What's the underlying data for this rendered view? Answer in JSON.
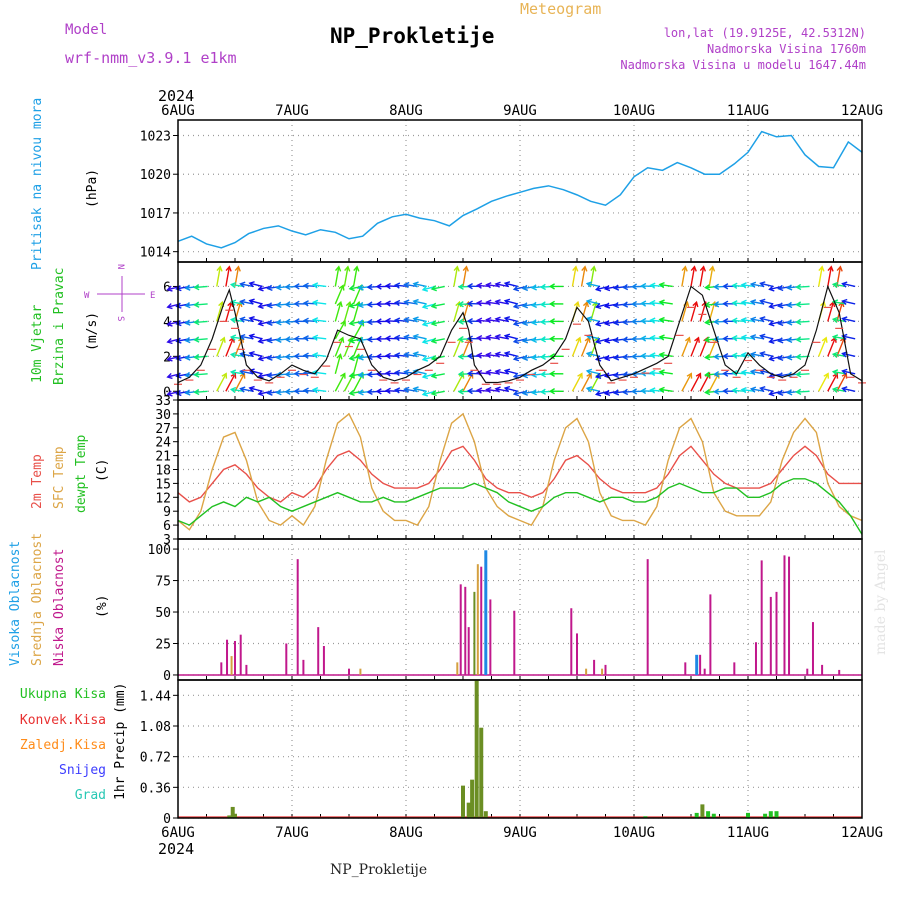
{
  "header": {
    "model_label": "Model",
    "model_name": "wrf-nmm_v3.9.1  e1km",
    "product": "Meteogram",
    "station": "NP_Prokletije",
    "coords": "lon,lat (19.9125E, 42.5312N)",
    "elevation": "Nadmorska Visina 1760m",
    "model_elevation": "Nadmorska Visina u modelu 1647.44m",
    "footer_station": "NP_Prokletije",
    "credit": "made by Angel"
  },
  "colors": {
    "pressure": "#1ea0e6",
    "temp2m": "#e8504a",
    "sfc_temp": "#dca546",
    "dewpt": "#22c022",
    "cloud_high": "#1e88e5",
    "cloud_mid": "#d4a040",
    "cloud_low": "#c0188c",
    "precip_total": "#6b8e23",
    "precip_conv": "#e83030",
    "precip_frz": "#ff8c1a",
    "snow": "#3c3cff",
    "graupel": "#28c8b4",
    "label_purple": "#b040c8"
  },
  "chart_data": [
    {
      "type": "line",
      "panel": "pressure",
      "ylabel_main": "Pritisak na nivou mora",
      "unit": "(hPa)",
      "yticks": [
        1014,
        1017,
        1020,
        1023
      ],
      "ylim": [
        1013.2,
        1024.2
      ],
      "x_ticks": [
        "6AUG",
        "7AUG",
        "8AUG",
        "9AUG",
        "10AUG",
        "11AUG",
        "12AUG"
      ],
      "x_year": "2024",
      "x_days": [
        0,
        6
      ],
      "grid": true,
      "series": [
        {
          "x": [
            0,
            0.12,
            0.25,
            0.38,
            0.5,
            0.62,
            0.75,
            0.88,
            1.0,
            1.12,
            1.25,
            1.38,
            1.5,
            1.62,
            1.75,
            1.88,
            2.0,
            2.12,
            2.25,
            2.38,
            2.5,
            2.62,
            2.75,
            2.88,
            3.0,
            3.12,
            3.25,
            3.38,
            3.5,
            3.62,
            3.75,
            3.88,
            4.0,
            4.12,
            4.25,
            4.38,
            4.5,
            4.62,
            4.75,
            4.88,
            5.0,
            5.12,
            5.25,
            5.38,
            5.5,
            5.62,
            5.75,
            5.88,
            6.0
          ],
          "y": [
            1014.8,
            1015.2,
            1014.6,
            1014.3,
            1014.7,
            1015.4,
            1015.8,
            1016.0,
            1015.6,
            1015.3,
            1015.7,
            1015.5,
            1015.0,
            1015.2,
            1016.2,
            1016.7,
            1016.9,
            1016.6,
            1016.4,
            1016.0,
            1016.8,
            1017.3,
            1017.9,
            1018.3,
            1018.6,
            1018.9,
            1019.1,
            1018.8,
            1018.4,
            1017.9,
            1017.6,
            1018.4,
            1019.8,
            1020.5,
            1020.3,
            1020.9,
            1020.5,
            1020.0,
            1020.0,
            1020.8,
            1021.7,
            1023.3,
            1022.9,
            1023.0,
            1021.5,
            1020.6,
            1020.5,
            1022.5,
            1021.7
          ]
        }
      ]
    },
    {
      "type": "line",
      "panel": "wind",
      "ylabel_main": "10m Vjetar",
      "ylabel_sub": "Brzina i Pravac",
      "unit": "(m/s)",
      "compass": {
        "n": "N",
        "s": "S",
        "e": "E",
        "w": "W"
      },
      "yticks": [
        0,
        2,
        4,
        6
      ],
      "ylim": [
        -0.5,
        7.4
      ],
      "grid": true,
      "series": [
        {
          "name": "",
          "x": [
            0,
            0.1,
            0.2,
            0.3,
            0.4,
            0.45,
            0.5,
            0.55,
            0.6,
            0.7,
            0.8,
            0.9,
            1.0,
            1.1,
            1.2,
            1.3,
            1.4,
            1.5,
            1.6,
            1.7,
            1.8,
            1.9,
            2.0,
            2.1,
            2.2,
            2.3,
            2.4,
            2.5,
            2.55,
            2.6,
            2.7,
            2.8,
            2.9,
            3.0,
            3.1,
            3.2,
            3.3,
            3.4,
            3.5,
            3.6,
            3.7,
            3.8,
            3.9,
            4.0,
            4.1,
            4.2,
            4.3,
            4.4,
            4.5,
            4.6,
            4.7,
            4.8,
            4.9,
            5.0,
            5.1,
            5.2,
            5.3,
            5.4,
            5.5,
            5.6,
            5.7,
            5.8,
            5.9,
            6.0
          ],
          "y": [
            0.5,
            0.8,
            1.5,
            3.0,
            5.0,
            5.8,
            4.5,
            3.0,
            1.5,
            0.8,
            0.6,
            1.0,
            1.5,
            1.2,
            1.0,
            1.8,
            3.5,
            3.2,
            3.0,
            1.5,
            0.8,
            0.6,
            0.8,
            1.2,
            1.5,
            2.0,
            3.5,
            4.5,
            3.5,
            1.5,
            0.5,
            0.5,
            0.6,
            0.8,
            1.2,
            1.5,
            2.0,
            3.0,
            4.8,
            4.0,
            1.5,
            0.6,
            0.8,
            1.0,
            1.3,
            1.6,
            2.0,
            4.0,
            6.0,
            5.5,
            3.5,
            1.5,
            1.0,
            2.2,
            1.5,
            1.0,
            0.8,
            1.0,
            1.5,
            3.5,
            6.0,
            4.5,
            1.0,
            0.6
          ]
        }
      ]
    },
    {
      "type": "line",
      "panel": "temperature",
      "ylabel_a": "2m Temp",
      "ylabel_b": "SFC Temp",
      "ylabel_c": "dewpt Temp",
      "unit": "(C)",
      "yticks": [
        3,
        6,
        9,
        12,
        15,
        18,
        21,
        24,
        27,
        30,
        33
      ],
      "ylim": [
        3,
        33
      ],
      "grid": true,
      "series": [
        {
          "name": "2m Temp",
          "x": [
            0,
            0.1,
            0.2,
            0.3,
            0.4,
            0.5,
            0.6,
            0.7,
            0.8,
            0.9,
            1.0,
            1.1,
            1.2,
            1.3,
            1.4,
            1.5,
            1.6,
            1.7,
            1.8,
            1.9,
            2.0,
            2.1,
            2.2,
            2.3,
            2.4,
            2.5,
            2.6,
            2.7,
            2.8,
            2.9,
            3.0,
            3.1,
            3.2,
            3.3,
            3.4,
            3.5,
            3.6,
            3.7,
            3.8,
            3.9,
            4.0,
            4.1,
            4.2,
            4.3,
            4.4,
            4.5,
            4.6,
            4.7,
            4.8,
            4.9,
            5.0,
            5.1,
            5.2,
            5.3,
            5.4,
            5.5,
            5.6,
            5.7,
            5.8,
            5.9,
            6.0
          ],
          "y": [
            13,
            11,
            12,
            15,
            18,
            19,
            17,
            14,
            12,
            11,
            13,
            12,
            14,
            18,
            21,
            22,
            20,
            17,
            15,
            14,
            14,
            14,
            15,
            18,
            22,
            23,
            20,
            16,
            14,
            13,
            13,
            12,
            13,
            16,
            20,
            21,
            19,
            16,
            14,
            13,
            13,
            13,
            14,
            17,
            21,
            23,
            20,
            17,
            15,
            14,
            14,
            14,
            15,
            18,
            21,
            23,
            21,
            17,
            15,
            15,
            15
          ]
        },
        {
          "name": "SFC Temp",
          "x": [
            0,
            0.1,
            0.2,
            0.3,
            0.4,
            0.5,
            0.6,
            0.7,
            0.8,
            0.9,
            1.0,
            1.1,
            1.2,
            1.3,
            1.4,
            1.5,
            1.6,
            1.7,
            1.8,
            1.9,
            2.0,
            2.1,
            2.2,
            2.3,
            2.4,
            2.5,
            2.6,
            2.7,
            2.8,
            2.9,
            3.0,
            3.1,
            3.2,
            3.3,
            3.4,
            3.5,
            3.6,
            3.7,
            3.8,
            3.9,
            4.0,
            4.1,
            4.2,
            4.3,
            4.4,
            4.5,
            4.6,
            4.7,
            4.8,
            4.9,
            5.0,
            5.1,
            5.2,
            5.3,
            5.4,
            5.5,
            5.6,
            5.7,
            5.8,
            5.9,
            6.0
          ],
          "y": [
            7,
            5,
            9,
            18,
            25,
            26,
            20,
            11,
            7,
            6,
            8,
            6,
            10,
            20,
            28,
            30,
            25,
            14,
            9,
            7,
            7,
            6,
            10,
            20,
            28,
            30,
            24,
            14,
            10,
            8,
            7,
            6,
            10,
            20,
            27,
            29,
            24,
            13,
            8,
            7,
            7,
            6,
            10,
            20,
            27,
            29,
            24,
            13,
            9,
            8,
            8,
            8,
            11,
            20,
            26,
            29,
            26,
            15,
            10,
            8,
            7
          ]
        },
        {
          "name": "dewpt Temp",
          "x": [
            0,
            0.1,
            0.2,
            0.3,
            0.4,
            0.5,
            0.6,
            0.7,
            0.8,
            0.9,
            1.0,
            1.1,
            1.2,
            1.3,
            1.4,
            1.5,
            1.6,
            1.7,
            1.8,
            1.9,
            2.0,
            2.1,
            2.2,
            2.3,
            2.4,
            2.5,
            2.6,
            2.7,
            2.8,
            2.9,
            3.0,
            3.1,
            3.2,
            3.3,
            3.4,
            3.5,
            3.6,
            3.7,
            3.8,
            3.9,
            4.0,
            4.1,
            4.2,
            4.3,
            4.4,
            4.5,
            4.6,
            4.7,
            4.8,
            4.9,
            5.0,
            5.1,
            5.2,
            5.3,
            5.4,
            5.5,
            5.6,
            5.7,
            5.8,
            5.9,
            6.0
          ],
          "y": [
            7,
            6,
            8,
            10,
            11,
            10,
            12,
            11,
            12,
            10,
            9,
            10,
            11,
            12,
            13,
            12,
            11,
            11,
            12,
            11,
            11,
            12,
            13,
            14,
            14,
            14,
            15,
            14,
            13,
            11,
            10,
            9,
            10,
            12,
            13,
            13,
            12,
            11,
            12,
            12,
            11,
            11,
            12,
            14,
            15,
            14,
            13,
            13,
            14,
            14,
            12,
            12,
            13,
            15,
            16,
            16,
            15,
            13,
            11,
            8,
            4
          ]
        }
      ]
    },
    {
      "type": "bar",
      "panel": "clouds",
      "ylabel_a": "Visoka Oblacnost",
      "ylabel_b": "Srednja Oblacnost",
      "ylabel_c": "Niska Oblacnost",
      "unit": "(%)",
      "yticks": [
        0,
        25,
        50,
        75,
        100
      ],
      "ylim": [
        -4,
        108
      ],
      "grid": true,
      "bars": [
        {
          "t": 0.38,
          "v": 10,
          "s": "low"
        },
        {
          "t": 0.43,
          "v": 28,
          "s": "low"
        },
        {
          "t": 0.47,
          "v": 15,
          "s": "mid"
        },
        {
          "t": 0.5,
          "v": 27,
          "s": "low"
        },
        {
          "t": 0.55,
          "v": 32,
          "s": "low"
        },
        {
          "t": 0.6,
          "v": 8,
          "s": "low"
        },
        {
          "t": 0.95,
          "v": 25,
          "s": "low"
        },
        {
          "t": 1.05,
          "v": 92,
          "s": "low"
        },
        {
          "t": 1.1,
          "v": 12,
          "s": "low"
        },
        {
          "t": 1.23,
          "v": 38,
          "s": "low"
        },
        {
          "t": 1.28,
          "v": 23,
          "s": "low"
        },
        {
          "t": 1.5,
          "v": 5,
          "s": "low"
        },
        {
          "t": 1.6,
          "v": 5,
          "s": "mid"
        },
        {
          "t": 2.45,
          "v": 10,
          "s": "mid"
        },
        {
          "t": 2.48,
          "v": 72,
          "s": "low"
        },
        {
          "t": 2.52,
          "v": 70,
          "s": "low"
        },
        {
          "t": 2.55,
          "v": 38,
          "s": "low"
        },
        {
          "t": 2.6,
          "v": 66,
          "s": "total"
        },
        {
          "t": 2.63,
          "v": 88,
          "s": "mid"
        },
        {
          "t": 2.66,
          "v": 86,
          "s": "low"
        },
        {
          "t": 2.7,
          "v": 99,
          "s": "high"
        },
        {
          "t": 2.74,
          "v": 60,
          "s": "low"
        },
        {
          "t": 2.95,
          "v": 51,
          "s": "low"
        },
        {
          "t": 3.45,
          "v": 53,
          "s": "low"
        },
        {
          "t": 3.5,
          "v": 33,
          "s": "low"
        },
        {
          "t": 3.58,
          "v": 5,
          "s": "mid"
        },
        {
          "t": 3.65,
          "v": 12,
          "s": "low"
        },
        {
          "t": 3.72,
          "v": 5,
          "s": "mid"
        },
        {
          "t": 3.75,
          "v": 8,
          "s": "low"
        },
        {
          "t": 4.12,
          "v": 92,
          "s": "low"
        },
        {
          "t": 4.45,
          "v": 10,
          "s": "low"
        },
        {
          "t": 4.55,
          "v": 16,
          "s": "high"
        },
        {
          "t": 4.58,
          "v": 16,
          "s": "low"
        },
        {
          "t": 4.62,
          "v": 5,
          "s": "low"
        },
        {
          "t": 4.67,
          "v": 64,
          "s": "low"
        },
        {
          "t": 4.88,
          "v": 10,
          "s": "low"
        },
        {
          "t": 5.07,
          "v": 26,
          "s": "low"
        },
        {
          "t": 5.12,
          "v": 91,
          "s": "low"
        },
        {
          "t": 5.2,
          "v": 62,
          "s": "low"
        },
        {
          "t": 5.25,
          "v": 66,
          "s": "low"
        },
        {
          "t": 5.32,
          "v": 95,
          "s": "low"
        },
        {
          "t": 5.36,
          "v": 94,
          "s": "low"
        },
        {
          "t": 5.52,
          "v": 5,
          "s": "low"
        },
        {
          "t": 5.57,
          "v": 42,
          "s": "low"
        },
        {
          "t": 5.65,
          "v": 8,
          "s": "low"
        },
        {
          "t": 5.8,
          "v": 4,
          "s": "low"
        }
      ]
    },
    {
      "type": "bar",
      "panel": "precip",
      "ylabel_main": "1hr Precip (mm)",
      "legend": [
        "Ukupna Kisa",
        "Konvek.Kisa",
        "Zaledj.Kisa",
        "Snijeg",
        "Grad"
      ],
      "yticks": [
        0,
        0.36,
        0.72,
        1.08,
        1.44
      ],
      "ylim": [
        0,
        1.62
      ],
      "grid": true,
      "bars": [
        {
          "t": 0.45,
          "v": 0.03,
          "s": "total"
        },
        {
          "t": 0.48,
          "v": 0.13,
          "s": "total"
        },
        {
          "t": 0.5,
          "v": 0.05,
          "s": "total"
        },
        {
          "t": 2.5,
          "v": 0.38,
          "s": "total"
        },
        {
          "t": 2.55,
          "v": 0.18,
          "s": "total"
        },
        {
          "t": 2.58,
          "v": 0.45,
          "s": "total"
        },
        {
          "t": 2.62,
          "v": 1.62,
          "s": "total"
        },
        {
          "t": 2.66,
          "v": 1.06,
          "s": "total"
        },
        {
          "t": 2.7,
          "v": 0.08,
          "s": "total"
        },
        {
          "t": 4.1,
          "v": 0.02,
          "s": "total"
        },
        {
          "t": 4.55,
          "v": 0.06,
          "s": "total"
        },
        {
          "t": 4.6,
          "v": 0.16,
          "s": "total"
        },
        {
          "t": 4.65,
          "v": 0.08,
          "s": "total"
        },
        {
          "t": 4.7,
          "v": 0.05,
          "s": "total"
        },
        {
          "t": 5.0,
          "v": 0.06,
          "s": "total"
        },
        {
          "t": 5.15,
          "v": 0.05,
          "s": "total"
        },
        {
          "t": 5.2,
          "v": 0.08,
          "s": "total"
        },
        {
          "t": 5.25,
          "v": 0.08,
          "s": "total"
        }
      ]
    }
  ]
}
